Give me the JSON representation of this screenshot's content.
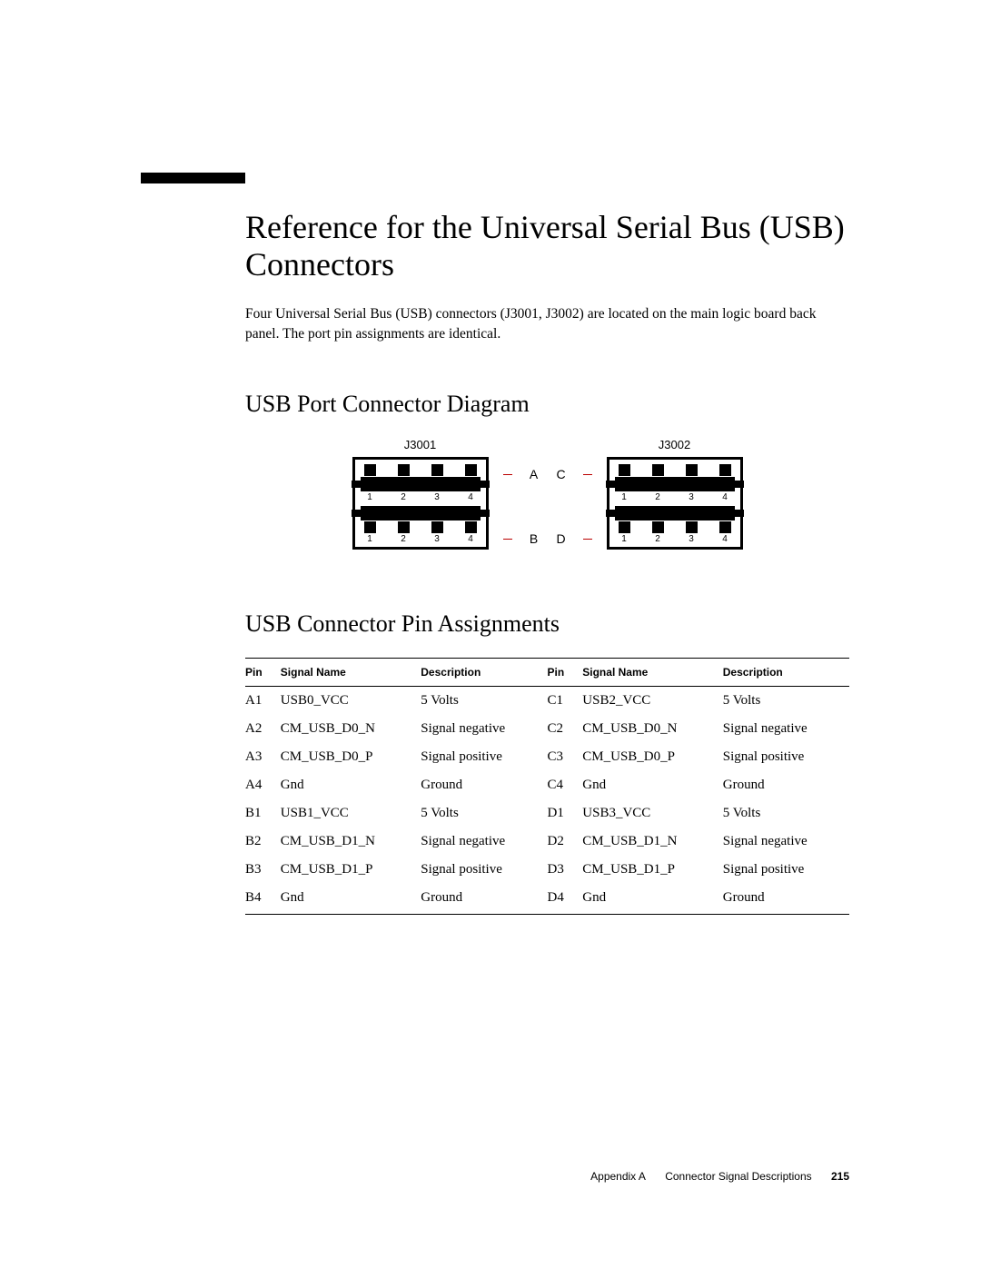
{
  "title": "Reference for the Universal Serial Bus (USB) Connectors",
  "intro": "Four Universal Serial Bus (USB) connectors (J3001, J3002) are located on the main logic board back panel. The port pin assignments are identical.",
  "diagram": {
    "heading": "USB Port Connector Diagram",
    "left_label": "J3001",
    "right_label": "J3002",
    "row_labels": {
      "tl": "A",
      "tr": "C",
      "bl": "B",
      "br": "D"
    },
    "pin_numbers": [
      "1",
      "2",
      "3",
      "4"
    ],
    "colors": {
      "outline": "#000000",
      "pin": "#000000",
      "body": "#000000",
      "lead": "#b00000",
      "background": "#ffffff"
    }
  },
  "table": {
    "heading": "USB Connector Pin Assignments",
    "columns": [
      "Pin",
      "Signal Name",
      "Description",
      "Pin",
      "Signal Name",
      "Description"
    ],
    "rows": [
      [
        "A1",
        "USB0_VCC",
        "5 Volts",
        "C1",
        "USB2_VCC",
        "5 Volts"
      ],
      [
        "A2",
        "CM_USB_D0_N",
        "Signal negative",
        "C2",
        "CM_USB_D0_N",
        "Signal negative"
      ],
      [
        "A3",
        "CM_USB_D0_P",
        "Signal positive",
        "C3",
        "CM_USB_D0_P",
        "Signal positive"
      ],
      [
        "A4",
        "Gnd",
        "Ground",
        "C4",
        "Gnd",
        "Ground"
      ],
      [
        "B1",
        "USB1_VCC",
        "5 Volts",
        "D1",
        "USB3_VCC",
        "5 Volts"
      ],
      [
        "B2",
        "CM_USB_D1_N",
        "Signal negative",
        "D2",
        "CM_USB_D1_N",
        "Signal negative"
      ],
      [
        "B3",
        "CM_USB_D1_P",
        "Signal positive",
        "D3",
        "CM_USB_D1_P",
        "Signal positive"
      ],
      [
        "B4",
        "Gnd",
        "Ground",
        "D4",
        "Gnd",
        "Ground"
      ]
    ]
  },
  "footer": {
    "appendix": "Appendix A",
    "section": "Connector Signal Descriptions",
    "page": "215"
  }
}
